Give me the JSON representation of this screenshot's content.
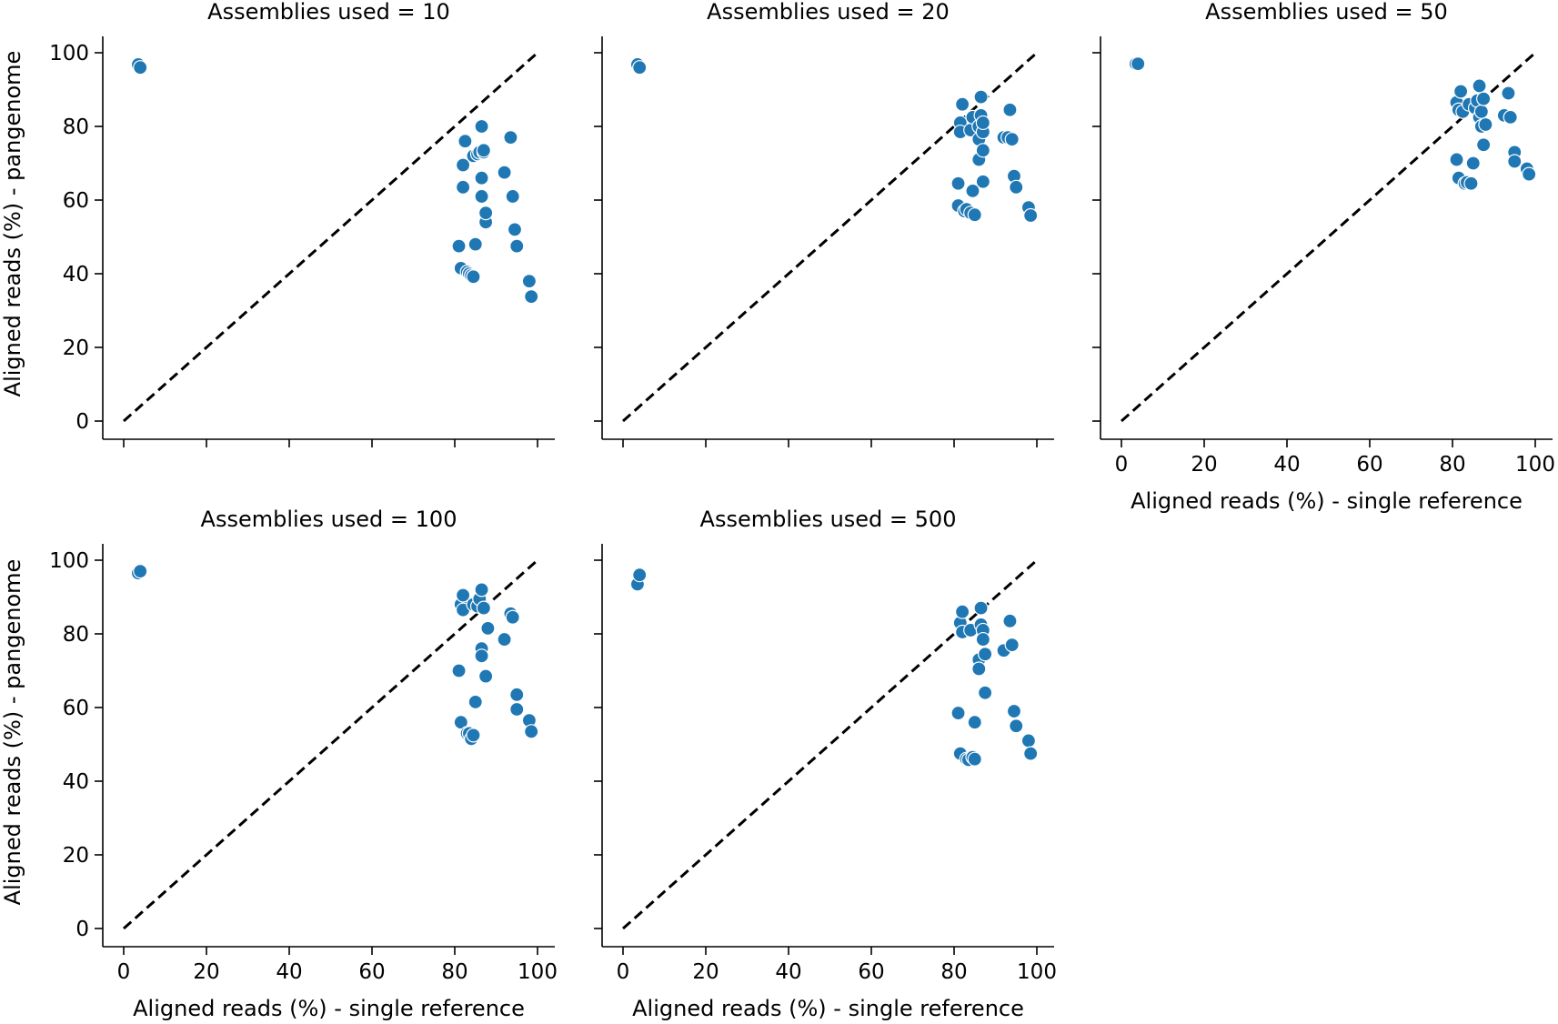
{
  "figure": {
    "y_axis_label": "Aligned reads (%) - pangenome",
    "x_axis_label": "Aligned reads (%) - single reference"
  },
  "chart_data": [
    {
      "type": "scatter",
      "title": "Assemblies used = 10",
      "xlabel": "",
      "ylabel": "Aligned reads (%) - pangenome",
      "xlim": [
        0,
        100
      ],
      "ylim": [
        0,
        100
      ],
      "xticks": [
        0,
        20,
        40,
        60,
        80,
        100
      ],
      "yticks": [
        0,
        20,
        40,
        60,
        80,
        100
      ],
      "show_xticklabels": false,
      "show_yticklabels": true,
      "reference_line": [
        [
          0,
          0
        ],
        [
          100,
          100
        ]
      ],
      "points": [
        [
          3.5,
          96.8
        ],
        [
          4.0,
          96.0
        ],
        [
          81.0,
          47.5
        ],
        [
          81.5,
          41.5
        ],
        [
          82.0,
          63.5
        ],
        [
          82.0,
          69.5
        ],
        [
          82.5,
          76.0
        ],
        [
          83.0,
          40.5
        ],
        [
          83.5,
          40.0
        ],
        [
          84.0,
          39.5
        ],
        [
          84.5,
          39.2
        ],
        [
          85.0,
          48.0
        ],
        [
          84.5,
          72.0
        ],
        [
          85.5,
          72.5
        ],
        [
          86.0,
          73.0
        ],
        [
          86.5,
          80.0
        ],
        [
          86.5,
          66.0
        ],
        [
          86.5,
          61.0
        ],
        [
          87.0,
          73.0
        ],
        [
          87.5,
          54.0
        ],
        [
          87.5,
          56.5
        ],
        [
          87.0,
          73.5
        ],
        [
          92.0,
          67.5
        ],
        [
          93.5,
          77.0
        ],
        [
          94.0,
          61.0
        ],
        [
          94.5,
          52.0
        ],
        [
          95.0,
          47.5
        ],
        [
          98.0,
          38.0
        ],
        [
          98.5,
          33.8
        ]
      ]
    },
    {
      "type": "scatter",
      "title": "Assemblies used = 20",
      "xlabel": "",
      "ylabel": "",
      "xlim": [
        0,
        100
      ],
      "ylim": [
        0,
        100
      ],
      "xticks": [
        0,
        20,
        40,
        60,
        80,
        100
      ],
      "yticks": [
        0,
        20,
        40,
        60,
        80,
        100
      ],
      "show_xticklabels": false,
      "show_yticklabels": false,
      "reference_line": [
        [
          0,
          0
        ],
        [
          100,
          100
        ]
      ],
      "points": [
        [
          3.5,
          96.8
        ],
        [
          4.0,
          96.0
        ],
        [
          81.0,
          64.5
        ],
        [
          81.0,
          58.5
        ],
        [
          81.5,
          81.0
        ],
        [
          81.5,
          78.5
        ],
        [
          82.0,
          86.0
        ],
        [
          82.5,
          57.0
        ],
        [
          83.0,
          57.5
        ],
        [
          84.0,
          56.5
        ],
        [
          84.0,
          79.0
        ],
        [
          84.5,
          82.5
        ],
        [
          84.5,
          62.5
        ],
        [
          85.0,
          56.0
        ],
        [
          86.0,
          71.0
        ],
        [
          86.0,
          76.5
        ],
        [
          86.0,
          80.0
        ],
        [
          86.5,
          88.0
        ],
        [
          86.5,
          83.0
        ],
        [
          87.0,
          78.5
        ],
        [
          87.0,
          65.0
        ],
        [
          87.0,
          73.5
        ],
        [
          87.0,
          81.0
        ],
        [
          92.0,
          77.0
        ],
        [
          93.0,
          77.0
        ],
        [
          93.5,
          84.5
        ],
        [
          94.0,
          76.5
        ],
        [
          94.5,
          66.5
        ],
        [
          95.0,
          63.5
        ],
        [
          98.0,
          58.0
        ],
        [
          98.5,
          55.8
        ]
      ]
    },
    {
      "type": "scatter",
      "title": "Assemblies used = 50",
      "xlabel": "Aligned reads (%) - single reference",
      "ylabel": "",
      "xlim": [
        0,
        100
      ],
      "ylim": [
        0,
        100
      ],
      "xticks": [
        0,
        20,
        40,
        60,
        80,
        100
      ],
      "yticks": [
        0,
        20,
        40,
        60,
        80,
        100
      ],
      "show_xticklabels": true,
      "show_yticklabels": false,
      "reference_line": [
        [
          0,
          0
        ],
        [
          100,
          100
        ]
      ],
      "points": [
        [
          3.5,
          97.0
        ],
        [
          4.0,
          97.0
        ],
        [
          81.0,
          71.0
        ],
        [
          81.5,
          66.0
        ],
        [
          81.0,
          86.5
        ],
        [
          81.5,
          84.5
        ],
        [
          82.0,
          89.5
        ],
        [
          82.5,
          84.0
        ],
        [
          83.0,
          64.5
        ],
        [
          83.5,
          64.8
        ],
        [
          84.0,
          86.0
        ],
        [
          84.5,
          64.5
        ],
        [
          85.0,
          70.0
        ],
        [
          85.5,
          85.0
        ],
        [
          86.0,
          87.0
        ],
        [
          86.5,
          91.0
        ],
        [
          86.5,
          82.5
        ],
        [
          87.0,
          80.0
        ],
        [
          87.0,
          84.0
        ],
        [
          87.5,
          75.0
        ],
        [
          87.5,
          87.5
        ],
        [
          88.0,
          80.5
        ],
        [
          92.5,
          83.0
        ],
        [
          93.5,
          89.0
        ],
        [
          94.0,
          82.5
        ],
        [
          95.0,
          73.0
        ],
        [
          95.0,
          70.5
        ],
        [
          98.0,
          68.5
        ],
        [
          98.5,
          67.0
        ]
      ]
    },
    {
      "type": "scatter",
      "title": "Assemblies used = 100",
      "xlabel": "Aligned reads (%) - single reference",
      "ylabel": "Aligned reads (%) - pangenome",
      "xlim": [
        0,
        100
      ],
      "ylim": [
        0,
        100
      ],
      "xticks": [
        0,
        20,
        40,
        60,
        80,
        100
      ],
      "yticks": [
        0,
        20,
        40,
        60,
        80,
        100
      ],
      "show_xticklabels": true,
      "show_yticklabels": true,
      "reference_line": [
        [
          0,
          0
        ],
        [
          100,
          100
        ]
      ],
      "points": [
        [
          3.5,
          96.5
        ],
        [
          4.0,
          97.0
        ],
        [
          81.0,
          70.0
        ],
        [
          81.5,
          56.0
        ],
        [
          81.5,
          88.0
        ],
        [
          82.0,
          86.5
        ],
        [
          82.0,
          90.5
        ],
        [
          83.0,
          53.0
        ],
        [
          83.5,
          53.0
        ],
        [
          84.0,
          51.5
        ],
        [
          84.5,
          52.5
        ],
        [
          85.0,
          61.5
        ],
        [
          84.5,
          88.0
        ],
        [
          85.5,
          87.5
        ],
        [
          86.0,
          89.5
        ],
        [
          86.5,
          92.0
        ],
        [
          86.5,
          76.0
        ],
        [
          86.5,
          74.0
        ],
        [
          87.0,
          87.0
        ],
        [
          87.5,
          68.5
        ],
        [
          88.0,
          81.5
        ],
        [
          92.0,
          78.5
        ],
        [
          93.5,
          85.5
        ],
        [
          94.0,
          84.5
        ],
        [
          95.0,
          63.5
        ],
        [
          95.0,
          59.5
        ],
        [
          98.0,
          56.5
        ],
        [
          98.5,
          53.5
        ]
      ]
    },
    {
      "type": "scatter",
      "title": "Assemblies used = 500",
      "xlabel": "Aligned reads (%) - single reference",
      "ylabel": "",
      "xlim": [
        0,
        100
      ],
      "ylim": [
        0,
        100
      ],
      "xticks": [
        0,
        20,
        40,
        60,
        80,
        100
      ],
      "yticks": [
        0,
        20,
        40,
        60,
        80,
        100
      ],
      "show_xticklabels": true,
      "show_yticklabels": false,
      "reference_line": [
        [
          0,
          0
        ],
        [
          100,
          100
        ]
      ],
      "points": [
        [
          3.5,
          93.5
        ],
        [
          4.0,
          96.0
        ],
        [
          81.0,
          58.5
        ],
        [
          81.5,
          47.5
        ],
        [
          81.5,
          83.0
        ],
        [
          82.0,
          80.5
        ],
        [
          82.0,
          86.0
        ],
        [
          83.0,
          46.0
        ],
        [
          83.5,
          45.8
        ],
        [
          84.0,
          81.0
        ],
        [
          84.5,
          46.5
        ],
        [
          85.0,
          46.0
        ],
        [
          85.0,
          56.0
        ],
        [
          86.0,
          73.0
        ],
        [
          86.0,
          70.5
        ],
        [
          86.5,
          82.5
        ],
        [
          86.5,
          87.0
        ],
        [
          87.0,
          81.0
        ],
        [
          87.0,
          78.5
        ],
        [
          87.5,
          74.5
        ],
        [
          87.5,
          64.0
        ],
        [
          92.0,
          75.5
        ],
        [
          93.5,
          83.5
        ],
        [
          94.0,
          77.0
        ],
        [
          94.5,
          59.0
        ],
        [
          95.0,
          55.0
        ],
        [
          98.0,
          51.0
        ],
        [
          98.5,
          47.5
        ]
      ]
    }
  ],
  "style": {
    "point_fill": "#1f77b4",
    "point_stroke": "#ffffff",
    "reference_line_color": "#000000",
    "axis_color": "#000000",
    "background": "#ffffff"
  }
}
